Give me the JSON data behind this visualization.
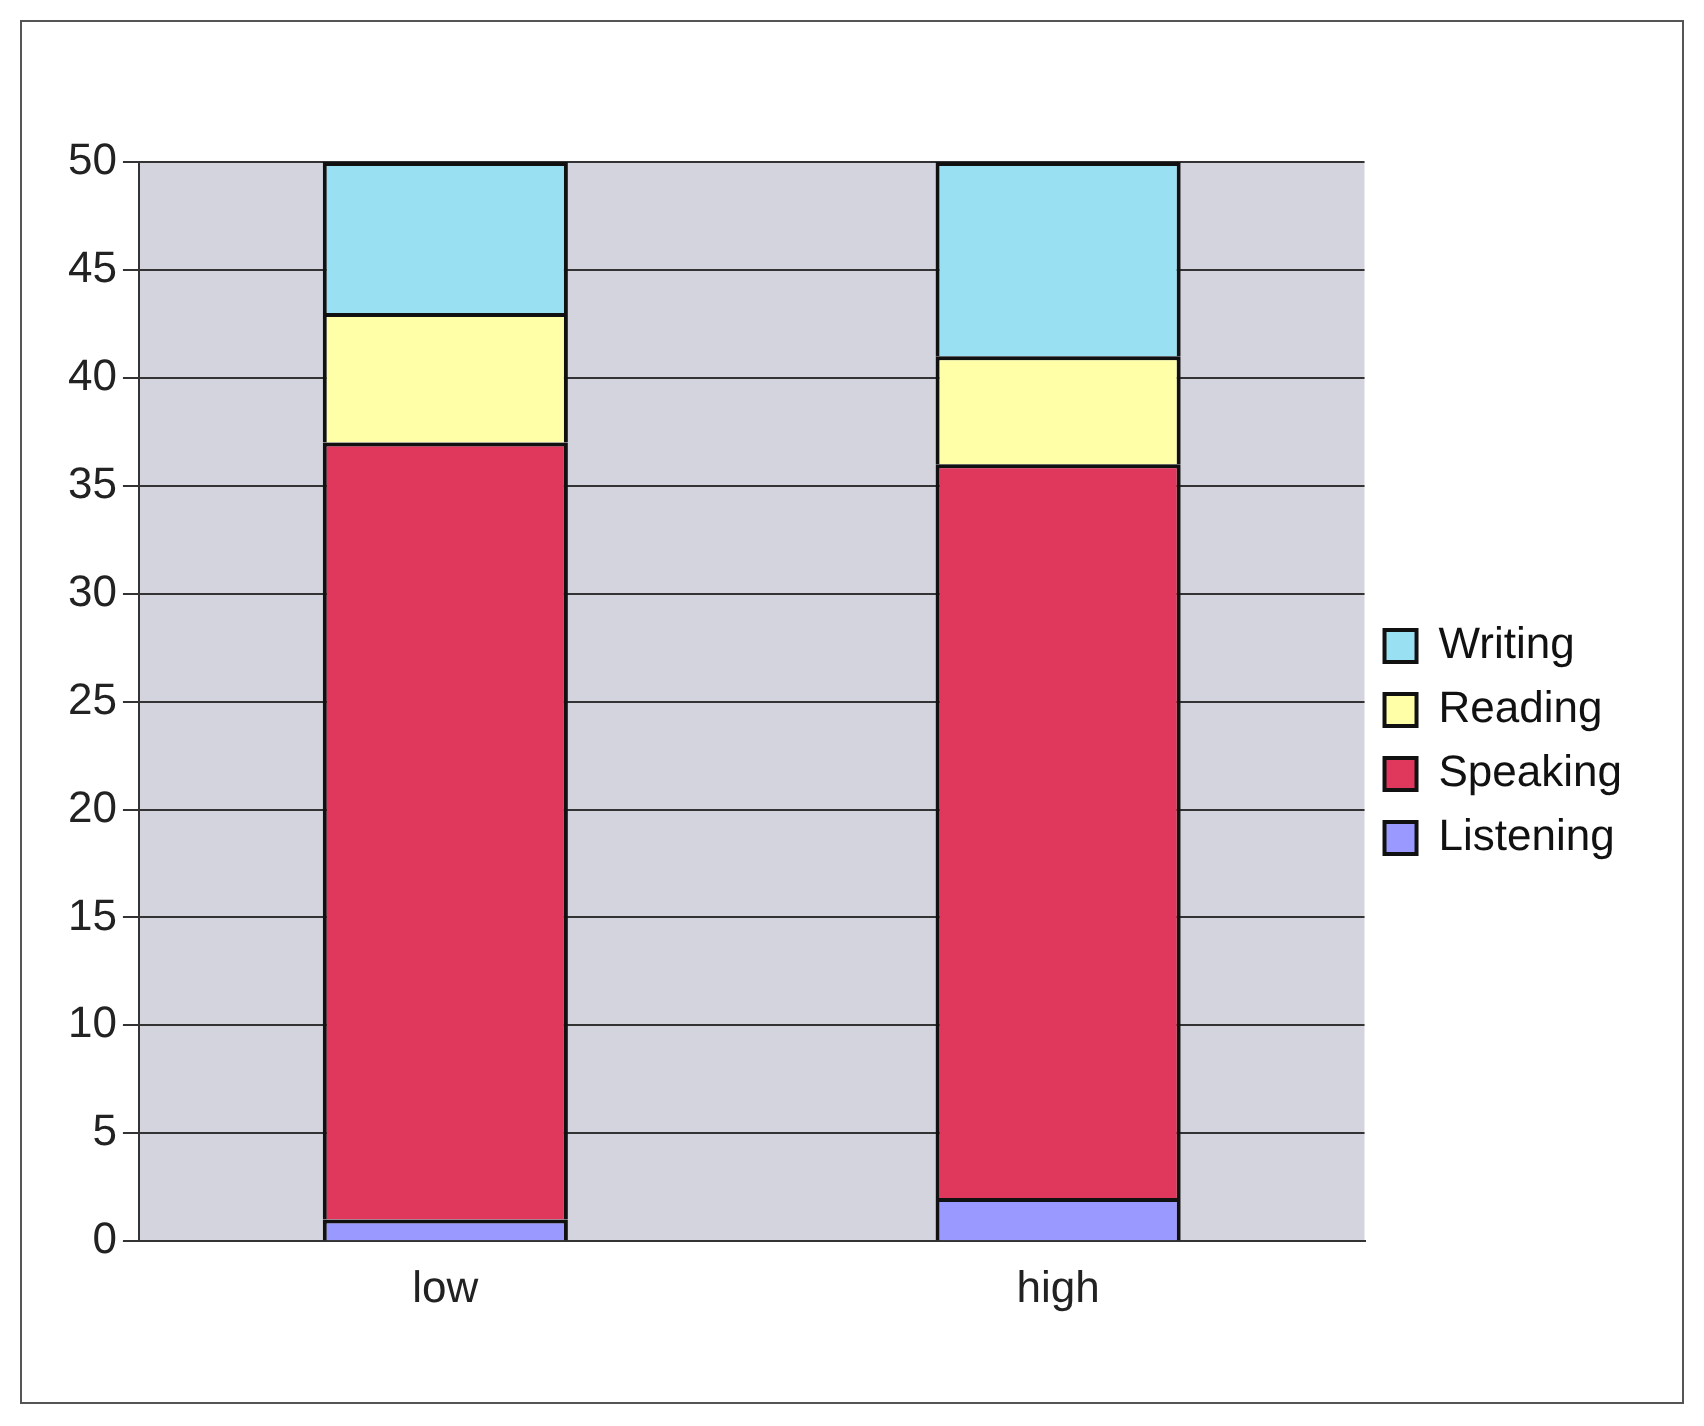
{
  "chart_data": {
    "type": "bar",
    "categories": [
      "low",
      "high"
    ],
    "stacked": true,
    "series": [
      {
        "name": "Listening",
        "color": "#9999ff",
        "values": [
          1,
          2
        ]
      },
      {
        "name": "Speaking",
        "color": "#e0385d",
        "values": [
          36,
          34
        ]
      },
      {
        "name": "Reading",
        "color": "#ffffa8",
        "values": [
          6,
          5
        ]
      },
      {
        "name": "Writing",
        "color": "#99e0f2",
        "values": [
          7,
          9
        ]
      }
    ],
    "ylim": [
      0,
      50
    ],
    "yticks": [
      0,
      5,
      10,
      15,
      20,
      25,
      30,
      35,
      40,
      45,
      50
    ],
    "grid": "y",
    "legend": "right"
  }
}
